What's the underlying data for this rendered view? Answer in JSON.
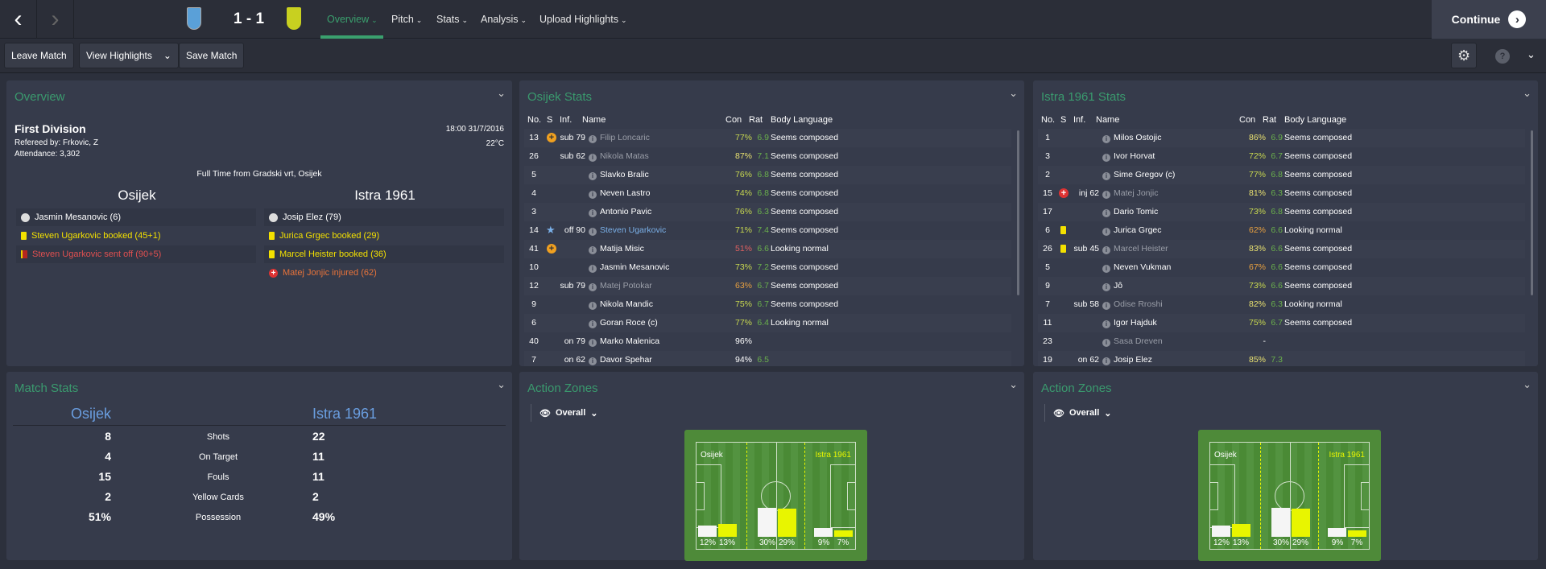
{
  "header": {
    "score": "1 - 1",
    "home_crest_color": "#5aa0d8",
    "away_crest_color": "#c8d020",
    "tabs": [
      {
        "label": "Overview",
        "active": true
      },
      {
        "label": "Pitch"
      },
      {
        "label": "Stats"
      },
      {
        "label": "Analysis"
      },
      {
        "label": "Upload Highlights"
      }
    ],
    "continue_label": "Continue"
  },
  "toolbar": {
    "leave": "Leave Match",
    "highlights": "View Highlights",
    "save": "Save Match"
  },
  "overview": {
    "title": "Overview",
    "competition": "First Division",
    "referee": "Refereed by: Frkovic, Z",
    "attendance": "Attendance: 3,302",
    "datetime": "18:00 31/7/2016",
    "temperature": "22°C",
    "venue": "Full Time from Gradski vrt, Osijek",
    "home": {
      "name": "Osijek",
      "events": [
        {
          "type": "goal",
          "text": "Jasmin Mesanovic (6)"
        },
        {
          "type": "yellow",
          "text": "Steven Ugarkovic booked (45+1)"
        },
        {
          "type": "red",
          "text": "Steven Ugarkovic sent off (90+5)"
        }
      ]
    },
    "away": {
      "name": "Istra 1961",
      "events": [
        {
          "type": "goal",
          "text": "Josip Elez (79)"
        },
        {
          "type": "yellow",
          "text": "Jurica Grgec booked (29)"
        },
        {
          "type": "yellow",
          "text": "Marcel Heister booked (36)"
        },
        {
          "type": "injury",
          "text": "Matej Jonjic injured (62)"
        }
      ]
    }
  },
  "columns": {
    "no": "No.",
    "s": "S",
    "inf": "Inf.",
    "name": "Name",
    "con": "Con",
    "rat": "Rat",
    "body": "Body Language"
  },
  "home_stats": {
    "title": "Osijek Stats",
    "rows": [
      {
        "no": "13",
        "s": "plus",
        "inf": "sub 79",
        "name": "Filip Loncaric",
        "dim": true,
        "con": "77%",
        "rat": "6.9",
        "body": "Seems composed"
      },
      {
        "no": "26",
        "s": "",
        "inf": "sub 62",
        "name": "Nikola Matas",
        "dim": true,
        "con": "87%",
        "rat": "7.1",
        "body": "Seems composed"
      },
      {
        "no": "5",
        "s": "",
        "inf": "",
        "name": "Slavko Bralic",
        "con": "76%",
        "rat": "6.8",
        "body": "Seems composed"
      },
      {
        "no": "4",
        "s": "",
        "inf": "",
        "name": "Neven Lastro",
        "con": "74%",
        "rat": "6.8",
        "body": "Seems composed"
      },
      {
        "no": "3",
        "s": "",
        "inf": "",
        "name": "Antonio Pavic",
        "con": "76%",
        "rat": "6.3",
        "body": "Seems composed"
      },
      {
        "no": "14",
        "s": "star",
        "inf": "off 90",
        "name": "Steven Ugarkovic",
        "blue": true,
        "con": "71%",
        "rat": "7.4",
        "body": "Seems composed"
      },
      {
        "no": "41",
        "s": "plus",
        "inf": "",
        "name": "Matija Misic",
        "con": "51%",
        "rat": "6.6",
        "body": "Looking normal"
      },
      {
        "no": "10",
        "s": "",
        "inf": "",
        "name": "Jasmin Mesanovic",
        "con": "73%",
        "rat": "7.2",
        "body": "Seems composed"
      },
      {
        "no": "12",
        "s": "",
        "inf": "sub 79",
        "name": "Matej Potokar",
        "dim": true,
        "con": "63%",
        "rat": "6.7",
        "body": "Seems composed"
      },
      {
        "no": "9",
        "s": "",
        "inf": "",
        "name": "Nikola Mandic",
        "con": "75%",
        "rat": "6.7",
        "body": "Seems composed"
      },
      {
        "no": "6",
        "s": "",
        "inf": "",
        "name": "Goran Roce (c)",
        "con": "77%",
        "rat": "6.4",
        "body": "Looking normal"
      },
      {
        "no": "40",
        "s": "",
        "inf": "on 79",
        "name": "Marko Malenica",
        "con": "96%",
        "rat": "",
        "body": ""
      },
      {
        "no": "7",
        "s": "",
        "inf": "on 62",
        "name": "Davor Spehar",
        "con": "94%",
        "rat": "6.5",
        "body": ""
      }
    ]
  },
  "away_stats": {
    "title": "Istra 1961 Stats",
    "rows": [
      {
        "no": "1",
        "s": "",
        "inf": "",
        "name": "Milos Ostojic",
        "con": "86%",
        "rat": "6.9",
        "body": "Seems composed"
      },
      {
        "no": "3",
        "s": "",
        "inf": "",
        "name": "Ivor Horvat",
        "con": "72%",
        "rat": "6.7",
        "body": "Seems composed"
      },
      {
        "no": "2",
        "s": "",
        "inf": "",
        "name": "Sime Gregov (c)",
        "con": "77%",
        "rat": "6.8",
        "body": "Seems composed"
      },
      {
        "no": "15",
        "s": "injury",
        "inf": "inj 62",
        "name": "Matej Jonjic",
        "dim": true,
        "con": "81%",
        "rat": "6.3",
        "body": "Seems composed"
      },
      {
        "no": "17",
        "s": "",
        "inf": "",
        "name": "Dario Tomic",
        "con": "73%",
        "rat": "6.8",
        "body": "Seems composed"
      },
      {
        "no": "6",
        "s": "yellow",
        "inf": "",
        "name": "Jurica Grgec",
        "con": "62%",
        "rat": "6.6",
        "body": "Looking normal"
      },
      {
        "no": "26",
        "s": "yellow",
        "inf": "sub 45",
        "name": "Marcel Heister",
        "dim": true,
        "con": "83%",
        "rat": "6.6",
        "body": "Seems composed"
      },
      {
        "no": "5",
        "s": "",
        "inf": "",
        "name": "Neven Vukman",
        "con": "67%",
        "rat": "6.6",
        "body": "Seems composed"
      },
      {
        "no": "9",
        "s": "",
        "inf": "",
        "name": "Jô",
        "con": "73%",
        "rat": "6.6",
        "body": "Seems composed"
      },
      {
        "no": "7",
        "s": "",
        "inf": "sub 58",
        "name": "Odise Rroshi",
        "dim": true,
        "con": "82%",
        "rat": "6.3",
        "body": "Looking normal"
      },
      {
        "no": "11",
        "s": "",
        "inf": "",
        "name": "Igor Hajduk",
        "con": "75%",
        "rat": "6.7",
        "body": "Seems composed"
      },
      {
        "no": "23",
        "s": "",
        "inf": "",
        "name": "Sasa Dreven",
        "dim": true,
        "con": "-",
        "rat": "",
        "body": ""
      },
      {
        "no": "19",
        "s": "",
        "inf": "on 62",
        "name": "Josip Elez",
        "con": "85%",
        "rat": "7.3",
        "body": ""
      }
    ]
  },
  "match_stats": {
    "title": "Match Stats",
    "home": "Osijek",
    "away": "Istra 1961",
    "rows": [
      {
        "label": "Shots",
        "home": "8",
        "away": "22"
      },
      {
        "label": "On Target",
        "home": "4",
        "away": "11"
      },
      {
        "label": "Fouls",
        "home": "15",
        "away": "11"
      },
      {
        "label": "Yellow Cards",
        "home": "2",
        "away": "2"
      },
      {
        "label": "Possession",
        "home": "51%",
        "away": "49%"
      }
    ]
  },
  "action_zones": [
    {
      "title": "Action Zones",
      "view": "Overall",
      "home": "Osijek",
      "away": "Istra 1961",
      "zones": [
        {
          "home": "12%",
          "away": "13%",
          "h": 12,
          "a": 13
        },
        {
          "home": "30%",
          "away": "29%",
          "h": 30,
          "a": 29
        },
        {
          "home": "9%",
          "away": "7%",
          "h": 9,
          "a": 7
        }
      ]
    },
    {
      "title": "Action Zones",
      "view": "Overall",
      "home": "Osijek",
      "away": "Istra 1961",
      "zones": [
        {
          "home": "12%",
          "away": "13%",
          "h": 12,
          "a": 13
        },
        {
          "home": "30%",
          "away": "29%",
          "h": 30,
          "a": 29
        },
        {
          "home": "9%",
          "away": "7%",
          "h": 9,
          "a": 7
        }
      ]
    }
  ],
  "colors": {
    "accent": "#3a9a6e",
    "home_bar": "#f5f5f5",
    "away_bar": "#e8f500",
    "rating": "#6ab04c"
  }
}
